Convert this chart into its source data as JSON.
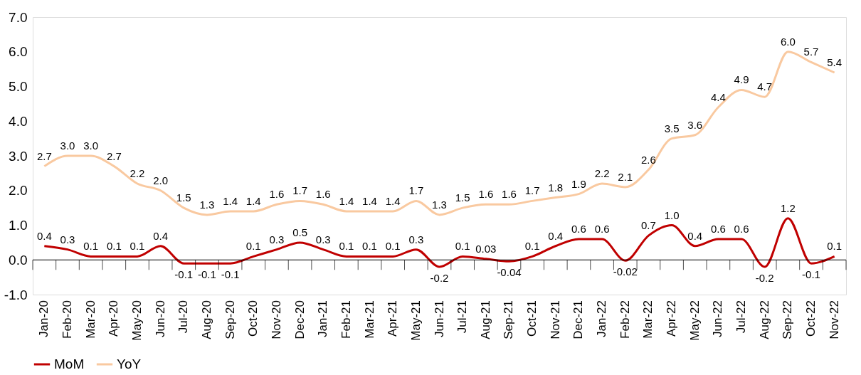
{
  "chart_data": {
    "type": "line",
    "categories": [
      "Jan-20",
      "Feb-20",
      "Mar-20",
      "Apr-20",
      "May-20",
      "Jun-20",
      "Jul-20",
      "Aug-20",
      "Sep-20",
      "Oct-20",
      "Nov-20",
      "Dec-20",
      "Jan-21",
      "Feb-21",
      "Mar-21",
      "Apr-21",
      "May-21",
      "Jun-21",
      "Jul-21",
      "Aug-21",
      "Sep-21",
      "Oct-21",
      "Nov-21",
      "Dec-21",
      "Jan-22",
      "Feb-22",
      "Mar-22",
      "Apr-22",
      "May-22",
      "Jun-22",
      "Jul-22",
      "Aug-22",
      "Sep-22",
      "Oct-22",
      "Nov-22"
    ],
    "series": [
      {
        "name": "MoM",
        "color": "#c00000",
        "values": [
          0.4,
          0.3,
          0.1,
          0.1,
          0.1,
          0.4,
          -0.1,
          -0.1,
          -0.1,
          0.1,
          0.3,
          0.5,
          0.3,
          0.1,
          0.1,
          0.1,
          0.3,
          -0.2,
          0.1,
          0.03,
          -0.04,
          0.1,
          0.4,
          0.6,
          0.6,
          -0.02,
          0.7,
          1.0,
          0.4,
          0.6,
          0.6,
          -0.2,
          1.2,
          -0.1,
          0.1
        ],
        "value_labels": [
          "0.4",
          "0.3",
          "0.1",
          "0.1",
          "0.1",
          "0.4",
          "-0.1",
          "-0.1",
          "-0.1",
          "0.1",
          "0.3",
          "0.5",
          "0.3",
          "0.1",
          "0.1",
          "0.1",
          "0.3",
          "-0.2",
          "0.1",
          "0.03",
          "-0.04",
          "0.1",
          "0.4",
          "0.6",
          "0.6",
          "-0.02",
          "0.7",
          "1.0",
          "0.4",
          "0.6",
          "0.6",
          "-0.2",
          "1.2",
          "-0.1",
          "0.1"
        ]
      },
      {
        "name": "YoY",
        "color": "#f9c9a0",
        "values": [
          2.7,
          3.0,
          3.0,
          2.7,
          2.2,
          2.0,
          1.5,
          1.3,
          1.4,
          1.4,
          1.6,
          1.7,
          1.6,
          1.4,
          1.4,
          1.4,
          1.7,
          1.3,
          1.5,
          1.6,
          1.6,
          1.7,
          1.8,
          1.9,
          2.2,
          2.1,
          2.6,
          3.5,
          3.6,
          4.4,
          4.9,
          4.7,
          6.0,
          5.7,
          5.4
        ],
        "value_labels": [
          "2.7",
          "3.0",
          "3.0",
          "2.7",
          "2.2",
          "2.0",
          "1.5",
          "1.3",
          "1.4",
          "1.4",
          "1.6",
          "1.7",
          "1.6",
          "1.4",
          "1.4",
          "1.4",
          "1.7",
          "1.3",
          "1.5",
          "1.6",
          "1.6",
          "1.7",
          "1.8",
          "1.9",
          "2.2",
          "2.1",
          "2.6",
          "3.5",
          "3.6",
          "4.4",
          "4.9",
          "4.7",
          "6.0",
          "5.7",
          "5.4"
        ]
      }
    ],
    "ylim": [
      -1.0,
      7.0
    ],
    "yticks": [
      {
        "value": -1,
        "label": "-1.0"
      },
      {
        "value": 0,
        "label": "0.0"
      },
      {
        "value": 1,
        "label": "1.0"
      },
      {
        "value": 2,
        "label": "2.0"
      },
      {
        "value": 3,
        "label": "3.0"
      },
      {
        "value": 4,
        "label": "4.0"
      },
      {
        "value": 5,
        "label": "5.0"
      },
      {
        "value": 6,
        "label": "6.0"
      },
      {
        "value": 7,
        "label": "7.0"
      }
    ],
    "ref_lines": [
      {
        "axis": "y",
        "value": 0,
        "color": "#000000"
      }
    ],
    "grid": false,
    "legend": "bottom",
    "marker": "none",
    "line_style": "solid"
  }
}
